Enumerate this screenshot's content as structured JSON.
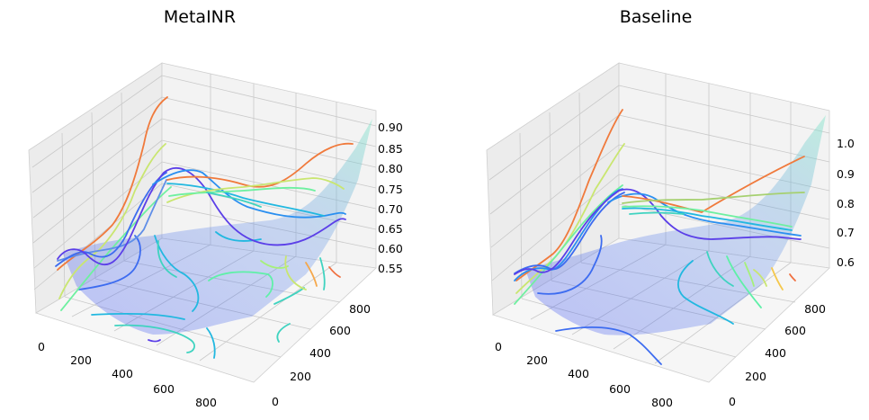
{
  "chart_data": [
    {
      "type": "3d-surface",
      "title": "MetaINR",
      "xlabel": "",
      "ylabel": "",
      "zlabel": "",
      "x_ticks": [
        "0",
        "200",
        "400",
        "600",
        "800"
      ],
      "y_ticks": [
        "0",
        "200",
        "400",
        "600",
        "800"
      ],
      "z_ticks": [
        "0.55",
        "0.60",
        "0.65",
        "0.70",
        "0.75",
        "0.80",
        "0.85",
        "0.90"
      ],
      "xlim": [
        0,
        900
      ],
      "ylim": [
        0,
        900
      ],
      "zlim": [
        0.55,
        0.92
      ],
      "grid": true,
      "colormap": "rainbow",
      "surface_colors": [
        "#3d4ef0",
        "#7fe6c6"
      ]
    },
    {
      "type": "3d-surface",
      "title": "Baseline",
      "xlabel": "",
      "ylabel": "",
      "zlabel": "",
      "x_ticks": [
        "0",
        "200",
        "400",
        "600",
        "800"
      ],
      "y_ticks": [
        "0",
        "200",
        "400",
        "600",
        "800"
      ],
      "z_ticks": [
        "0.6",
        "0.7",
        "0.8",
        "0.9",
        "1.0"
      ],
      "xlim": [
        0,
        900
      ],
      "ylim": [
        0,
        900
      ],
      "zlim": [
        0.56,
        1.08
      ],
      "grid": true,
      "colormap": "rainbow",
      "surface_colors": [
        "#3d4ef0",
        "#7fe6c6"
      ]
    }
  ]
}
